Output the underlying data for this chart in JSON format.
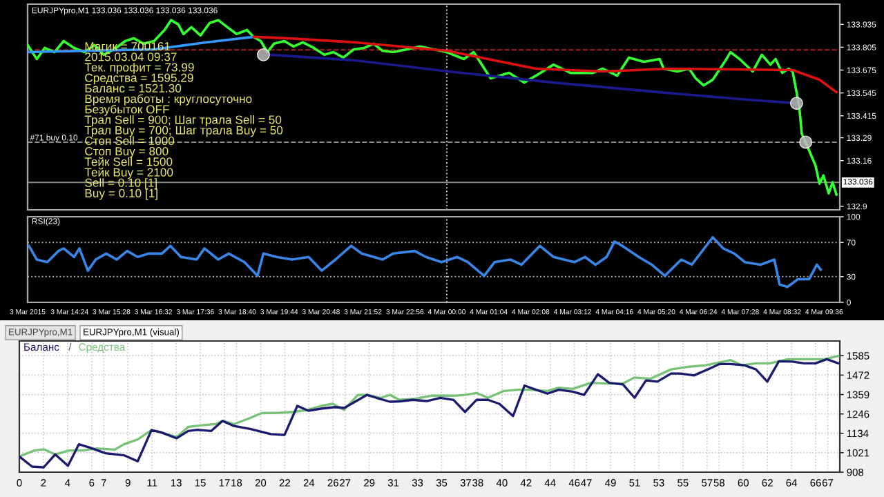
{
  "chart_data": [
    {
      "type": "line",
      "title": "EURJPYpro,M1 133.036 133.036 133.036 133.036",
      "tick_labels": "y",
      "grid": false,
      "marker": "none",
      "line_style": "solid",
      "xlim": [
        "2015-03-03T13:20",
        "2015-03-04T10:00"
      ],
      "ylim": [
        132.88,
        134.05
      ],
      "xticks": [
        {
          "value": "2015-03-03T13:20",
          "label": null
        },
        {
          "value": "2015-03-03T14:24",
          "label": null
        },
        {
          "value": "2015-03-03T15:28",
          "label": null
        },
        {
          "value": "2015-03-03T16:32",
          "label": null
        },
        {
          "value": "2015-03-03T17:36",
          "label": null
        },
        {
          "value": "2015-03-03T18:40",
          "label": null
        },
        {
          "value": "2015-03-03T19:44",
          "label": null
        },
        {
          "value": "2015-03-03T20:48",
          "label": null
        },
        {
          "value": "2015-03-03T21:52",
          "label": null
        },
        {
          "value": "2015-03-03T22:56",
          "label": null
        },
        {
          "value": "2015-03-04T00:00",
          "label": null
        },
        {
          "value": "2015-03-04T01:04",
          "label": null
        },
        {
          "value": "2015-03-04T02:08",
          "label": null
        },
        {
          "value": "2015-03-04T03:12",
          "label": null
        },
        {
          "value": "2015-03-04T04:16",
          "label": null
        },
        {
          "value": "2015-03-04T05:20",
          "label": null
        },
        {
          "value": "2015-03-04T06:24",
          "label": null
        },
        {
          "value": "2015-03-04T07:28",
          "label": null
        },
        {
          "value": "2015-03-04T08:32",
          "label": null
        },
        {
          "value": "2015-03-04T09:36",
          "label": null
        }
      ],
      "yticks": [
        133.935,
        133.805,
        133.675,
        133.545,
        133.415,
        133.29,
        133.16,
        132.9
      ],
      "series": [
        {
          "color": "#33ff33",
          "x": [
            "2015-03-03T13:20",
            "2015-03-03T13:34",
            "2015-03-03T13:46",
            "2015-03-03T14:01",
            "2015-03-03T14:15",
            "2015-03-03T14:31",
            "2015-03-03T14:47",
            "2015-03-03T15:02",
            "2015-03-03T15:16",
            "2015-03-03T15:32",
            "2015-03-03T15:49",
            "2015-03-03T16:02",
            "2015-03-03T16:17",
            "2015-03-03T16:33",
            "2015-03-03T16:49",
            "2015-03-03T16:59",
            "2015-03-03T17:10",
            "2015-03-03T17:18",
            "2015-03-03T17:30",
            "2015-03-03T17:44",
            "2015-03-03T17:58",
            "2015-03-03T18:11",
            "2015-03-03T18:25",
            "2015-03-03T18:39",
            "2015-03-03T18:55",
            "2015-03-03T19:05",
            "2015-03-03T19:16",
            "2015-03-03T19:26",
            "2015-03-03T19:36",
            "2015-03-03T19:52",
            "2015-03-03T20:06",
            "2015-03-03T20:20",
            "2015-03-03T20:37",
            "2015-03-03T20:53",
            "2015-03-03T21:07",
            "2015-03-03T21:22",
            "2015-03-03T21:38",
            "2015-03-03T21:54",
            "2015-03-03T22:08",
            "2015-03-03T22:22",
            "2015-03-03T22:38",
            "2015-03-03T22:59",
            "2015-03-03T23:19",
            "2015-03-03T23:40",
            "2015-03-04T00:00",
            "2015-03-04T00:26",
            "2015-03-04T00:41",
            "2015-03-04T01:07",
            "2015-03-04T01:35",
            "2015-03-04T01:58",
            "2015-03-04T02:16",
            "2015-03-04T02:43",
            "2015-03-04T03:09",
            "2015-03-04T03:43",
            "2015-03-04T03:58",
            "2015-03-04T04:20",
            "2015-03-04T04:38",
            "2015-03-04T05:01",
            "2015-03-04T05:25",
            "2015-03-04T05:31",
            "2015-03-04T05:52",
            "2015-03-04T06:10",
            "2015-03-04T06:20",
            "2015-03-04T06:32",
            "2015-03-04T06:46",
            "2015-03-04T07:07",
            "2015-03-04T07:13",
            "2015-03-04T07:27",
            "2015-03-04T07:47",
            "2015-03-04T08:01",
            "2015-03-04T08:14",
            "2015-03-04T08:22",
            "2015-03-04T08:32",
            "2015-03-04T08:42",
            "2015-03-04T08:48",
            "2015-03-04T08:54",
            "2015-03-04T08:58",
            "2015-03-04T09:02",
            "2015-03-04T09:08",
            "2015-03-04T09:14",
            "2015-03-04T09:23",
            "2015-03-04T09:29",
            "2015-03-04T09:35",
            "2015-03-04T09:43",
            "2015-03-04T09:49",
            "2015-03-04T09:55"
          ],
          "values": [
            133.817,
            133.738,
            133.801,
            133.777,
            133.84,
            133.801,
            133.777,
            133.817,
            133.762,
            133.793,
            133.84,
            133.856,
            133.825,
            133.84,
            133.903,
            133.959,
            133.935,
            133.88,
            133.919,
            133.872,
            133.943,
            133.959,
            133.919,
            133.88,
            133.903,
            133.864,
            133.84,
            133.777,
            133.825,
            133.84,
            133.809,
            133.833,
            133.801,
            133.762,
            133.777,
            133.746,
            133.793,
            133.801,
            133.825,
            133.785,
            133.777,
            133.793,
            133.809,
            133.793,
            133.777,
            133.738,
            133.777,
            133.628,
            133.659,
            133.604,
            133.643,
            133.706,
            133.659,
            133.659,
            133.683,
            133.643,
            133.746,
            133.722,
            133.738,
            133.683,
            133.667,
            133.683,
            133.628,
            133.588,
            133.62,
            133.738,
            133.777,
            133.738,
            133.667,
            133.762,
            133.706,
            133.738,
            133.659,
            133.683,
            133.667,
            133.549,
            133.47,
            133.312,
            133.265,
            133.21,
            133.131,
            133.029,
            133.076,
            132.974,
            133.037,
            132.966
          ]
        },
        {
          "color": "#3399ff",
          "x": [
            "2015-03-03T13:20",
            "2015-03-03T14:52",
            "2015-03-03T16:33",
            "2015-03-03T17:54",
            "2015-03-03T19:05"
          ],
          "values": [
            133.777,
            133.785,
            133.793,
            133.833,
            133.864
          ]
        },
        {
          "color": "#dd1111",
          "x": [
            "2015-03-03T19:05",
            "2015-03-03T19:56",
            "2015-03-03T21:38",
            "2015-03-04T00:00",
            "2015-03-04T02:16",
            "2015-03-04T03:58",
            "2015-03-04T05:39",
            "2015-03-04T08:48",
            "2015-03-04T09:29",
            "2015-03-04T09:55"
          ],
          "values": [
            133.864,
            133.856,
            133.833,
            133.785,
            133.683,
            133.667,
            133.683,
            133.675,
            133.62,
            133.549
          ]
        },
        {
          "color": "#1a1a8c",
          "x": [
            "2015-03-03T19:30",
            "2015-03-03T21:38",
            "2015-03-04T00:00",
            "2015-03-04T02:43",
            "2015-03-04T05:25",
            "2015-03-04T07:27",
            "2015-03-04T08:54"
          ],
          "values": [
            133.762,
            133.731,
            133.668,
            133.604,
            133.549,
            133.51,
            133.486
          ]
        },
        {
          "type": "scatter",
          "marker": "circle",
          "color": "#bbbbbb",
          "x": [
            "2015-03-03T19:20",
            "2015-03-04T08:54",
            "2015-03-04T09:08"
          ],
          "values": [
            133.762,
            133.486,
            133.265
          ]
        }
      ],
      "ref_lines": [
        {
          "axis": "y",
          "value": 133.79,
          "color": "#aa2222",
          "line_style": "dashed"
        },
        {
          "axis": "y",
          "value": 133.265,
          "label": "#71 buy 0.10",
          "color": "#888888",
          "line_style": "dashed"
        },
        {
          "axis": "y",
          "value": 133.036,
          "label": "133.036",
          "color": "#888888",
          "line_style": "solid"
        },
        {
          "axis": "x",
          "value": "2015-03-04T00:00",
          "color": "#cccccc",
          "line_style": "dotted"
        }
      ],
      "annotations": [
        "Магик = 700161",
        "2015.03.04 09:37",
        "Тек. профит = 73.99",
        "Средства = 1595.29",
        "Баланс = 1521.30",
        "Время работы : круглосуточно",
        "Безубыток OFF",
        "Трал Sell = 900; Шаг трала Sell = 50",
        "Трал Buy = 700; Шаг трала Buy = 50",
        "Стоп Sell = 1000",
        "Стоп Buy = 800",
        "Тейк Sell = 1500",
        "Тейк Buy = 2100",
        "Sell = 0.10 [1]",
        "Buy = 0.10 [1]"
      ]
    },
    {
      "type": "line",
      "title": "RSI(23)",
      "grid": false,
      "marker": "none",
      "line_style": "solid",
      "xlim": [
        "2015-03-03T13:20",
        "2015-03-04T10:00"
      ],
      "ylim": [
        0,
        100
      ],
      "yticks": [
        0,
        30,
        70,
        100
      ],
      "xticks": [
        {
          "value": "2015-03-03T13:20",
          "label": "3 Mar 2015"
        },
        {
          "value": "2015-03-03T14:24",
          "label": "3 Mar 14:24"
        },
        {
          "value": "2015-03-03T15:28",
          "label": "3 Mar 15:28"
        },
        {
          "value": "2015-03-03T16:32",
          "label": "3 Mar 16:32"
        },
        {
          "value": "2015-03-03T17:36",
          "label": "3 Mar 17:36"
        },
        {
          "value": "2015-03-03T18:40",
          "label": "3 Mar 18:40"
        },
        {
          "value": "2015-03-03T19:44",
          "label": "3 Mar 19:44"
        },
        {
          "value": "2015-03-03T20:48",
          "label": "3 Mar 20:48"
        },
        {
          "value": "2015-03-03T21:52",
          "label": "3 Mar 21:52"
        },
        {
          "value": "2015-03-03T22:56",
          "label": "3 Mar 22:56"
        },
        {
          "value": "2015-03-04T00:00",
          "label": "4 Mar 00:00"
        },
        {
          "value": "2015-03-04T01:04",
          "label": "4 Mar 01:04"
        },
        {
          "value": "2015-03-04T02:08",
          "label": "4 Mar 02:08"
        },
        {
          "value": "2015-03-04T03:12",
          "label": "4 Mar 03:12"
        },
        {
          "value": "2015-03-04T04:16",
          "label": "4 Mar 04:16"
        },
        {
          "value": "2015-03-04T05:20",
          "label": "4 Mar 05:20"
        },
        {
          "value": "2015-03-04T06:24",
          "label": "4 Mar 06:24"
        },
        {
          "value": "2015-03-04T07:28",
          "label": "4 Mar 07:28"
        },
        {
          "value": "2015-03-04T08:32",
          "label": "4 Mar 08:32"
        },
        {
          "value": "2015-03-04T09:36",
          "label": "4 Mar 09:36"
        }
      ],
      "series": [
        {
          "color": "#3a86e8",
          "x": [
            "2015-03-03T13:22",
            "2015-03-03T13:34",
            "2015-03-03T13:50",
            "2015-03-03T14:07",
            "2015-03-03T14:15",
            "2015-03-03T14:31",
            "2015-03-03T14:39",
            "2015-03-03T14:52",
            "2015-03-03T15:04",
            "2015-03-03T15:20",
            "2015-03-03T15:36",
            "2015-03-03T15:52",
            "2015-03-03T16:08",
            "2015-03-03T16:25",
            "2015-03-03T16:45",
            "2015-03-03T16:58",
            "2015-03-03T17:14",
            "2015-03-03T17:38",
            "2015-03-03T17:50",
            "2015-03-03T18:11",
            "2015-03-03T18:27",
            "2015-03-03T18:51",
            "2015-03-03T19:11",
            "2015-03-03T19:20",
            "2015-03-03T19:40",
            "2015-03-03T20:04",
            "2015-03-03T20:29",
            "2015-03-03T20:49",
            "2015-03-03T21:10",
            "2015-03-03T21:34",
            "2015-03-03T21:50",
            "2015-03-03T22:22",
            "2015-03-03T22:38",
            "2015-03-03T23:11",
            "2015-03-03T23:28",
            "2015-03-03T23:52",
            "2015-03-04T00:16",
            "2015-03-04T00:32",
            "2015-03-04T00:57",
            "2015-03-04T01:13",
            "2015-03-04T01:37",
            "2015-03-04T01:54",
            "2015-03-04T02:22",
            "2015-03-04T02:43",
            "2015-03-04T03:15",
            "2015-03-04T03:31",
            "2015-03-04T03:47",
            "2015-03-04T04:04",
            "2015-03-04T04:16",
            "2015-03-04T04:28",
            "2015-03-04T04:53",
            "2015-03-04T05:13",
            "2015-03-04T05:33",
            "2015-03-04T05:58",
            "2015-03-04T06:14",
            "2015-03-04T06:30",
            "2015-03-04T06:46",
            "2015-03-04T07:02",
            "2015-03-04T07:19",
            "2015-03-04T07:35",
            "2015-03-04T07:59",
            "2015-03-04T08:20",
            "2015-03-04T08:28",
            "2015-03-04T08:40",
            "2015-03-04T08:56",
            "2015-03-04T09:13",
            "2015-03-04T09:25",
            "2015-03-04T09:31"
          ],
          "values": [
            66,
            50,
            47,
            60,
            63,
            53,
            63,
            37,
            50,
            57,
            50,
            60,
            53,
            57,
            57,
            66,
            53,
            50,
            63,
            50,
            57,
            47,
            31,
            57,
            53,
            50,
            53,
            37,
            50,
            66,
            57,
            50,
            57,
            60,
            53,
            47,
            53,
            47,
            31,
            47,
            50,
            44,
            66,
            53,
            47,
            53,
            44,
            53,
            71,
            66,
            53,
            44,
            31,
            50,
            44,
            60,
            76,
            63,
            57,
            47,
            44,
            50,
            21,
            18,
            27,
            27,
            44,
            38
          ]
        }
      ],
      "ref_lines": [
        {
          "axis": "y",
          "value": 70,
          "color": "#aaaaaa",
          "line_style": "dotted"
        },
        {
          "axis": "y",
          "value": 30,
          "color": "#aaaaaa",
          "line_style": "dotted"
        },
        {
          "axis": "x",
          "value": "2015-03-04T00:00",
          "color": "#cccccc",
          "line_style": "dotted"
        }
      ]
    },
    {
      "type": "line",
      "grid": true,
      "legend": "top left",
      "marker": "none",
      "line_style": "solid",
      "xlim": [
        0,
        68
      ],
      "ylim": [
        908,
        1670
      ],
      "xticks": [
        0,
        2,
        4,
        6,
        7,
        9,
        11,
        13,
        15,
        17,
        18,
        20,
        22,
        24,
        26,
        27,
        29,
        31,
        33,
        35,
        37,
        38,
        40,
        42,
        44,
        46,
        47,
        49,
        51,
        53,
        55,
        57,
        58,
        60,
        62,
        64,
        66,
        67
      ],
      "yticks": [
        908,
        1021,
        1134,
        1246,
        1359,
        1472,
        1585
      ],
      "series": [
        {
          "name": "Средства",
          "color": "#77c277",
          "x": [
            0,
            1.25,
            2.02,
            2.97,
            4.11,
            5.25,
            6.39,
            7.91,
            8.67,
            9.81,
            10.95,
            11.71,
            13.04,
            13.99,
            15.13,
            16.27,
            16.84,
            17.79,
            19.13,
            20.08,
            21.6,
            22.74,
            23.88,
            25.02,
            25.97,
            26.92,
            28.06,
            28.82,
            29.96,
            30.72,
            31.48,
            32.62,
            34.14,
            35.99,
            36.94,
            37.89,
            38.84,
            40.17,
            41.31,
            42.44,
            43.77,
            44.72,
            45.86,
            47.37,
            48.71,
            50.03,
            50.99,
            52.32,
            54.02,
            55.54,
            56.87,
            58.01,
            58.96,
            59.91,
            61.05,
            62.18,
            62.95,
            63.71,
            65.22,
            66.74,
            67.88
          ],
          "values": [
            999,
            1034,
            1041,
            1011,
            1034,
            1034,
            1046,
            1039,
            1070,
            1098,
            1152,
            1140,
            1112,
            1171,
            1180,
            1187,
            1206,
            1187,
            1223,
            1251,
            1253,
            1258,
            1270,
            1293,
            1305,
            1270,
            1357,
            1357,
            1340,
            1357,
            1328,
            1333,
            1352,
            1352,
            1357,
            1368,
            1340,
            1380,
            1387,
            1387,
            1380,
            1399,
            1392,
            1427,
            1423,
            1423,
            1458,
            1451,
            1505,
            1521,
            1529,
            1545,
            1559,
            1529,
            1540,
            1540,
            1552,
            1564,
            1564,
            1564,
            1583
          ]
        },
        {
          "name": "Баланс",
          "color": "#1a1a6e",
          "x": [
            0,
            1.06,
            2.02,
            2.97,
            4.03,
            4.94,
            5.82,
            7.15,
            8.67,
            9.81,
            10.95,
            11.71,
            13.04,
            13.99,
            14.75,
            15.89,
            16.84,
            17.79,
            19.13,
            20.84,
            21.98,
            23.04,
            23.95,
            25.02,
            26.16,
            26.92,
            28.82,
            29.58,
            30.72,
            31.48,
            32.62,
            33.76,
            34.9,
            35.99,
            36.94,
            37.89,
            38.84,
            39.78,
            40.92,
            41.87,
            42.82,
            43.77,
            44.72,
            45.86,
            46.81,
            47.95,
            48.89,
            50.03,
            50.99,
            51.94,
            52.88,
            54.02,
            54.78,
            55.92,
            57.06,
            58.01,
            58.96,
            60.1,
            61.05,
            61.99,
            62.95,
            64.09,
            65.03,
            65.98,
            66.93,
            67.88
          ],
          "values": [
            999,
            940,
            936,
            1011,
            945,
            1070,
            1051,
            1018,
            1006,
            971,
            1152,
            1140,
            1105,
            1147,
            1154,
            1147,
            1206,
            1176,
            1159,
            1129,
            1124,
            1293,
            1265,
            1277,
            1286,
            1281,
            1357,
            1340,
            1317,
            1319,
            1328,
            1321,
            1340,
            1328,
            1258,
            1328,
            1328,
            1305,
            1234,
            1411,
            1387,
            1364,
            1387,
            1376,
            1357,
            1477,
            1427,
            1418,
            1340,
            1441,
            1434,
            1481,
            1481,
            1470,
            1505,
            1536,
            1536,
            1529,
            1505,
            1434,
            1552,
            1550,
            1540,
            1540,
            1564,
            1540
          ]
        }
      ],
      "annotations": [
        "/",
        "EURJPYpro,M1",
        "EURJPYpro,M1 (visual)"
      ]
    }
  ]
}
